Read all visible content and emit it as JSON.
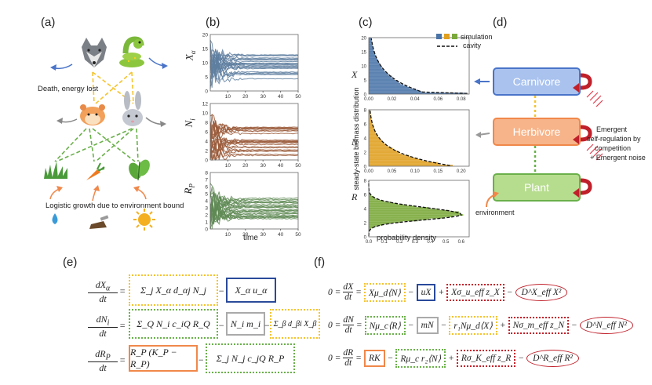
{
  "panels": {
    "a": "(a)",
    "b": "(b)",
    "c": "(c)",
    "d": "(d)",
    "e": "(e)",
    "f": "(f)"
  },
  "panel_a": {
    "death_text": "Death, energy lost",
    "growth_text": "Logistic growth due to environment bound",
    "animals": [
      "wolf",
      "snake",
      "hamster",
      "rabbit"
    ],
    "plants": [
      "grass",
      "carrot",
      "leaves"
    ],
    "resources": [
      "water-drop",
      "soil",
      "sun"
    ]
  },
  "panel_b": {
    "ylabels": [
      "X_α",
      "N_i",
      "R_P"
    ],
    "xlabel": "time",
    "x_ticks": [
      "10",
      "20",
      "30",
      "40",
      "50"
    ],
    "y_ticks_top": [
      "0",
      "5",
      "10",
      "15",
      "20"
    ],
    "y_ticks_mid": [
      "0",
      "2",
      "4",
      "6",
      "8",
      "10",
      "12"
    ],
    "y_ticks_bot": [
      "0",
      "1",
      "2",
      "3",
      "4",
      "5",
      "6",
      "7",
      "8"
    ],
    "colors": {
      "X": "#5f7fa0",
      "N": "#9a5a3a",
      "R": "#5f8a55"
    }
  },
  "panel_c": {
    "legend_label": "simulation",
    "legend_cavity": "cavity",
    "ylabel": "steady-state biomass distribution",
    "xlabel": "probability density",
    "colors": {
      "X": "#4a74a8",
      "N": "#e0a020",
      "R": "#7aa83a"
    },
    "sub": [
      {
        "var": "X",
        "x_ticks": [
          "0.00",
          "0.02",
          "0.04",
          "0.06",
          "0.08"
        ],
        "y_ticks": [
          "0",
          "5",
          "10",
          "15",
          "20"
        ]
      },
      {
        "var": "N",
        "x_ticks": [
          "0.00",
          "0.05",
          "0.10",
          "0.15",
          "0.20"
        ],
        "y_ticks": [
          "0",
          "2",
          "4",
          "6",
          "8"
        ]
      },
      {
        "var": "R",
        "x_ticks": [
          "0.0",
          "0.1",
          "0.2",
          "0.3",
          "0.4",
          "0.5",
          "0.6"
        ],
        "y_ticks": [
          "0",
          "2",
          "4",
          "6",
          "8"
        ]
      }
    ]
  },
  "panel_d": {
    "carnivore": "Carnivore",
    "herbivore": "Herbivore",
    "plant": "Plant",
    "emergent_1": "Emergent",
    "emergent_2": "self-regulation by",
    "emergent_3": "competition",
    "emergent_4": "+ Emergent noise",
    "environment": "environment",
    "colors": {
      "blue": "#4a74c8",
      "orange": "#f0884a",
      "green": "#6ab04a",
      "red": "#c0202a"
    }
  },
  "eq_e": {
    "lhs": [
      "dX_α/dt",
      "dN_i/dt",
      "dR_P/dt"
    ],
    "row1": [
      "Σ_j X_α d_αj N_j",
      "X_α u_α"
    ],
    "row2": [
      "Σ_Q N_i c_iQ R_Q",
      "N_i m_i",
      "Σ_β d_βi X_β"
    ],
    "row3": [
      "R_P (K_P − R_P)",
      "Σ_j N_j c_jQ R_P"
    ]
  },
  "eq_f": {
    "row1": [
      "Xμ_d⟨N⟩",
      "uX",
      "Xσ_u_eff z_X",
      "D^X_eff X²"
    ],
    "row2": [
      "Nμ_c⟨R⟩",
      "mN",
      "r₁Nμ_d⟨X⟩",
      "Nσ_m_eff z_N",
      "D^N_eff N²"
    ],
    "row3": [
      "RK",
      "Rμ_c r₂⟨N⟩",
      "Rσ_K_eff z_R",
      "D^R_eff R²"
    ]
  }
}
